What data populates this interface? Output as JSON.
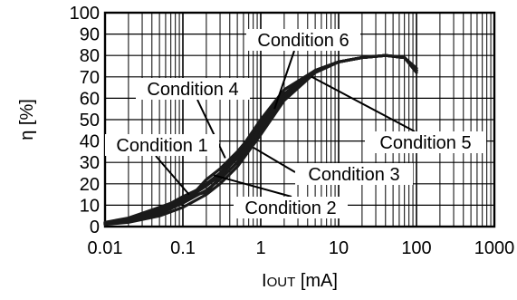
{
  "chart_data": {
    "type": "line",
    "title": "",
    "xlabel_main": "I",
    "xlabel_sub": "OUT",
    "xlabel_unit": " [mA]",
    "ylabel": "η [%]",
    "xscale": "log",
    "xlim": [
      0.01,
      1000
    ],
    "ylim": [
      0,
      100
    ],
    "grid": true,
    "legend": "callouts",
    "x_ticks": [
      {
        "value": 0.01,
        "label": "0.01"
      },
      {
        "value": 0.1,
        "label": "0.1"
      },
      {
        "value": 1,
        "label": "1"
      },
      {
        "value": 10,
        "label": "10"
      },
      {
        "value": 100,
        "label": "100"
      },
      {
        "value": 1000,
        "label": "1000"
      }
    ],
    "y_ticks": [
      {
        "value": 0,
        "label": "0"
      },
      {
        "value": 10,
        "label": "10"
      },
      {
        "value": 20,
        "label": "20"
      },
      {
        "value": 30,
        "label": "30"
      },
      {
        "value": 40,
        "label": "40"
      },
      {
        "value": 50,
        "label": "50"
      },
      {
        "value": 60,
        "label": "60"
      },
      {
        "value": 70,
        "label": "70"
      },
      {
        "value": 80,
        "label": "80"
      },
      {
        "value": 90,
        "label": "90"
      },
      {
        "value": 100,
        "label": "100"
      }
    ],
    "series": [
      {
        "name": "Condition 1",
        "x": [
          0.01,
          0.02,
          0.05,
          0.1,
          0.15,
          0.2,
          0.3,
          0.5,
          1,
          2,
          5,
          10,
          20,
          40,
          70,
          100
        ],
        "y": [
          1.5,
          3,
          8,
          14,
          17,
          22,
          27,
          35,
          48,
          62,
          73,
          77,
          79,
          80,
          79,
          73
        ]
      },
      {
        "name": "Condition 2",
        "x": [
          0.01,
          0.02,
          0.05,
          0.1,
          0.2,
          0.3,
          0.5,
          1,
          2,
          5,
          10,
          20,
          40,
          70,
          100
        ],
        "y": [
          1,
          2,
          5,
          9,
          15,
          20,
          28,
          43,
          59,
          72,
          77,
          79,
          80,
          79,
          72
        ]
      },
      {
        "name": "Condition 3",
        "x": [
          0.01,
          0.02,
          0.05,
          0.1,
          0.2,
          0.3,
          0.5,
          1,
          2,
          5,
          10,
          20,
          40,
          70,
          100
        ],
        "y": [
          1.2,
          2.5,
          6,
          11,
          17,
          22,
          30,
          45,
          60,
          72,
          77,
          79,
          80,
          79,
          73
        ]
      },
      {
        "name": "Condition 4",
        "x": [
          0.01,
          0.02,
          0.05,
          0.1,
          0.15,
          0.2,
          0.3,
          0.5,
          1,
          2,
          5,
          10,
          20,
          40,
          70,
          100
        ],
        "y": [
          2,
          4,
          9,
          13,
          15,
          16,
          23,
          33,
          48,
          62,
          73,
          77,
          79,
          80,
          79,
          74
        ]
      },
      {
        "name": "Condition 5",
        "x": [
          0.01,
          0.02,
          0.05,
          0.1,
          0.2,
          0.3,
          0.5,
          1,
          2,
          5,
          10,
          20,
          40,
          70,
          100
        ],
        "y": [
          1.5,
          3,
          7,
          12,
          19,
          24,
          32,
          46,
          61,
          72,
          77,
          79,
          80,
          79,
          73
        ]
      },
      {
        "name": "Condition 6",
        "x": [
          0.01,
          0.02,
          0.05,
          0.1,
          0.2,
          0.3,
          0.5,
          1,
          2,
          5,
          10,
          20,
          40,
          70,
          100
        ],
        "y": [
          1.8,
          3.5,
          8,
          13,
          20,
          25,
          34,
          50,
          64,
          73,
          77,
          79,
          80,
          79,
          73
        ]
      }
    ],
    "annotations": [
      {
        "text": "Condition 6",
        "point": [
          1.5,
          55
        ]
      },
      {
        "text": "Condition 4",
        "point": [
          0.35,
          32
        ]
      },
      {
        "text": "Condition 1",
        "point": [
          0.12,
          15
        ]
      },
      {
        "text": "Condition 5",
        "point": [
          4.5,
          70
        ]
      },
      {
        "text": "Condition 3",
        "point": [
          0.8,
          37
        ]
      },
      {
        "text": "Condition 2",
        "point": [
          0.25,
          24
        ]
      }
    ]
  }
}
